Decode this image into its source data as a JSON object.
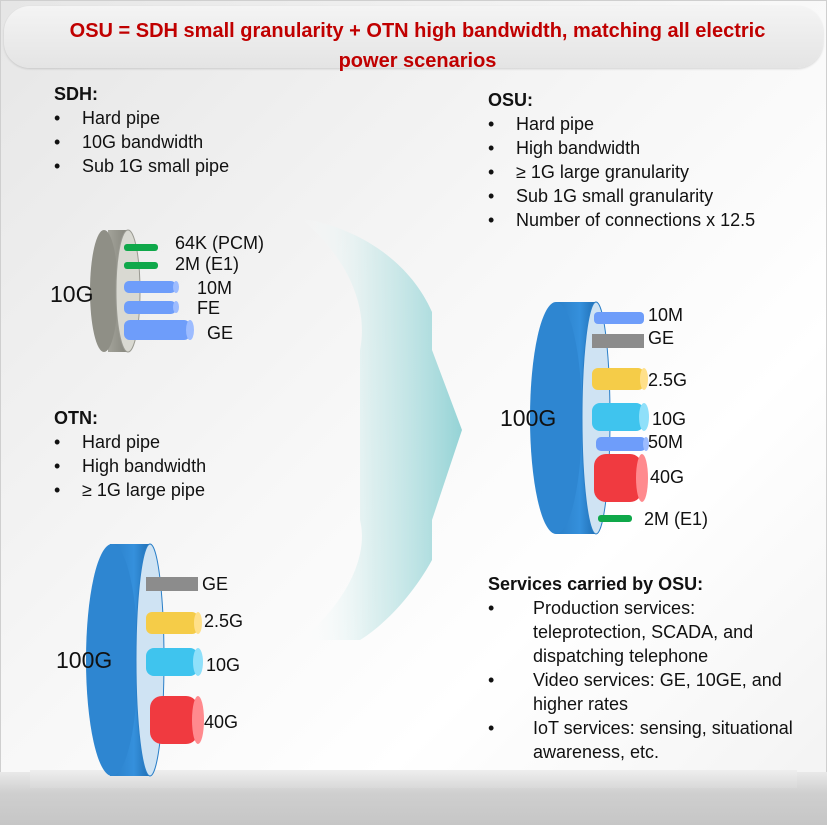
{
  "title": "OSU = SDH small granularity + OTN high bandwidth, matching all electric power scenarios",
  "sdh": {
    "heading": "SDH:",
    "items": [
      "Hard pipe",
      "10G bandwidth",
      "Sub 1G small pipe"
    ],
    "pipe_label": "10G",
    "lanes": [
      "64K (PCM)",
      "2M (E1)",
      "10M",
      "FE",
      "GE"
    ]
  },
  "otn": {
    "heading": "OTN:",
    "items": [
      "Hard pipe",
      "High bandwidth",
      "≥ 1G large pipe"
    ],
    "pipe_label": "100G",
    "lanes": [
      "GE",
      "2.5G",
      "10G",
      "40G"
    ]
  },
  "osu": {
    "heading": "OSU:",
    "items": [
      "Hard pipe",
      "High bandwidth",
      "≥ 1G large granularity",
      "Sub 1G small granularity",
      "Number of connections x 12.5"
    ],
    "pipe_label": "100G",
    "lanes": [
      "10M",
      "GE",
      "2.5G",
      "10G",
      "50M",
      "40G",
      "2M (E1)"
    ]
  },
  "services": {
    "heading": "Services carried by OSU:",
    "items": [
      "Production services: teleprotection, SCADA, and dispatching telephone",
      "Video services: GE, 10GE, and higher rates",
      "IoT services: sensing, situational awareness, etc."
    ]
  },
  "colors": {
    "title_red": "#c00000",
    "big_pipe_blue": "#2e86d1",
    "sdh_pipe_gray": "#8f8f86",
    "lane_green": "#0fa84a",
    "lane_blue": "#6e9dfa",
    "lane_gray": "#8c8c8c",
    "lane_yellow": "#f5cc48",
    "lane_cyan": "#3fc4ee",
    "lane_red": "#f03a40",
    "arrow_teal": "#9fd8d8"
  }
}
